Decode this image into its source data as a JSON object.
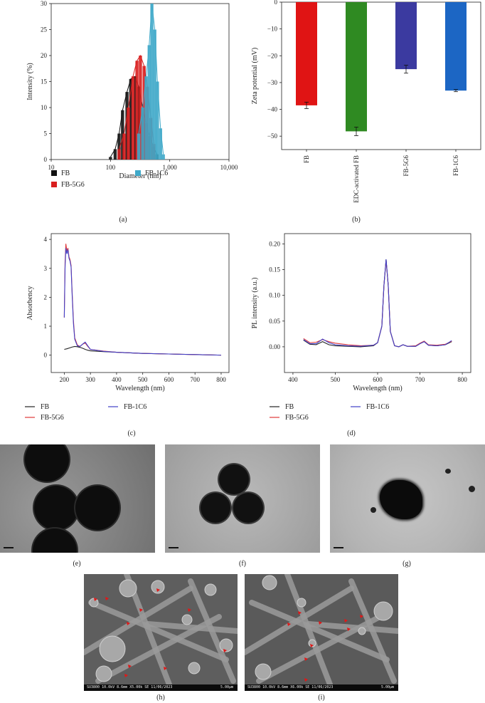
{
  "panels": {
    "a": {
      "label": "(a)"
    },
    "b": {
      "label": "(b)"
    },
    "c": {
      "label": "(c)"
    },
    "d": {
      "label": "(d)"
    },
    "e": {
      "label": "(e)"
    },
    "f": {
      "label": "(f)"
    },
    "g": {
      "label": "(g)"
    },
    "h": {
      "label": "(h)"
    },
    "i": {
      "label": "(i)"
    }
  },
  "colors": {
    "FB": "#111111",
    "FB-5G6": "#d91e1e",
    "FB-1C6": "#3fa9c9",
    "EDC": "#2f8a22",
    "FB5G6bar": "#3b3aa0",
    "FB1C6bar": "#1c66c4",
    "line_FB": "#222222",
    "line_5G6": "#e03a3a",
    "line_1C6": "#4040c8"
  },
  "sem": {
    "h": {
      "left": "SU3800 10.0kV 8.6mm X5.00k SE 11/06/2023",
      "right": "5.00μm"
    },
    "i": {
      "left": "SU3800 10.0kV 8.6mm X6.00k SE 11/06/2023",
      "right": "5.00μm"
    }
  },
  "chart_data": [
    {
      "panel": "a",
      "type": "bar",
      "xscale": "log",
      "xlabel": "Diameter (nm)",
      "ylabel": "Intensity (%)",
      "xlim": [
        10,
        10000
      ],
      "ylim": [
        0,
        30
      ],
      "xticks": [
        "10",
        "100",
        "1,000",
        "10,000"
      ],
      "yticks": [
        "0",
        "5",
        "10",
        "15",
        "20",
        "25",
        "30"
      ],
      "series": [
        {
          "name": "FB",
          "x": [
            100,
            120,
            140,
            160,
            190,
            220,
            260,
            300,
            350,
            400,
            460,
            530,
            610
          ],
          "values": [
            0.5,
            2,
            5,
            9.5,
            13,
            15.5,
            16,
            14,
            10,
            7,
            4.5,
            2.5,
            1
          ]
        },
        {
          "name": "FB-5G6",
          "x": [
            140,
            170,
            200,
            240,
            280,
            320,
            370,
            420,
            480,
            540
          ],
          "values": [
            2,
            5,
            10,
            16,
            19,
            20,
            18,
            14,
            8,
            3
          ]
        },
        {
          "name": "FB-1C6",
          "x": [
            300,
            350,
            400,
            450,
            500,
            560,
            620,
            700,
            780
          ],
          "values": [
            5,
            10,
            16,
            22,
            30,
            25,
            15,
            6,
            1
          ]
        }
      ],
      "legend": [
        "FB",
        "FB-5G6",
        "FB-1C6"
      ]
    },
    {
      "panel": "b",
      "type": "bar",
      "ylabel": "Zeta potential (mV)",
      "ylim": [
        -55,
        0
      ],
      "yticks": [
        "0",
        "-10",
        "-20",
        "-30",
        "-40",
        "-50"
      ],
      "categories": [
        "FB",
        "EDC-activated FB",
        "FB-5G6",
        "FB-1C6"
      ],
      "values": [
        -38.5,
        -48.2,
        -25.0,
        -33.0
      ],
      "errors": [
        1.2,
        1.6,
        1.5,
        0.4
      ]
    },
    {
      "panel": "c",
      "type": "line",
      "xlabel": "Wavelength (nm)",
      "ylabel": "Absorbency",
      "xlim": [
        150,
        830
      ],
      "ylim": [
        -0.6,
        4.2
      ],
      "xticks": [
        "200",
        "300",
        "400",
        "500",
        "600",
        "700",
        "800"
      ],
      "yticks": [
        "0",
        "1",
        "2",
        "3",
        "4"
      ],
      "series": [
        {
          "name": "FB",
          "x": [
            200,
            210,
            220,
            230,
            240,
            250,
            260,
            270,
            280,
            290,
            300,
            350,
            400,
            500,
            600,
            700,
            800
          ],
          "values": [
            0.2,
            0.22,
            0.25,
            0.28,
            0.3,
            0.29,
            0.27,
            0.24,
            0.2,
            0.17,
            0.15,
            0.12,
            0.1,
            0.06,
            0.04,
            0.02,
            0.0
          ]
        },
        {
          "name": "FB-5G6",
          "x": [
            200,
            203,
            206,
            210,
            214,
            218,
            222,
            226,
            230,
            235,
            240,
            250,
            260,
            270,
            280,
            290,
            300,
            350,
            400,
            500,
            600,
            700,
            800
          ],
          "values": [
            1.3,
            3.2,
            3.85,
            3.6,
            3.7,
            3.4,
            3.3,
            3.1,
            2.2,
            1.2,
            0.6,
            0.35,
            0.3,
            0.38,
            0.42,
            0.3,
            0.2,
            0.14,
            0.1,
            0.06,
            0.04,
            0.02,
            0.0
          ]
        },
        {
          "name": "FB-1C6",
          "x": [
            200,
            203,
            206,
            210,
            214,
            218,
            222,
            226,
            230,
            235,
            240,
            250,
            260,
            270,
            280,
            290,
            300,
            350,
            400,
            500,
            600,
            700,
            800
          ],
          "values": [
            1.3,
            3.0,
            3.7,
            3.5,
            3.65,
            3.35,
            3.25,
            3.05,
            2.1,
            1.1,
            0.55,
            0.32,
            0.3,
            0.38,
            0.45,
            0.32,
            0.2,
            0.13,
            0.1,
            0.06,
            0.04,
            0.02,
            0.0
          ]
        }
      ],
      "legend": [
        "FB",
        "FB-5G6",
        "FB-1C6"
      ]
    },
    {
      "panel": "d",
      "type": "line",
      "xlabel": "Wavelength (nm)",
      "ylabel": "PL intensity (a.u.)",
      "xlim": [
        380,
        820
      ],
      "ylim": [
        -0.05,
        0.22
      ],
      "xticks": [
        "400",
        "500",
        "600",
        "700",
        "800"
      ],
      "yticks": [
        "0.00",
        "0.05",
        "0.10",
        "0.15",
        "0.20"
      ],
      "series": [
        {
          "name": "FB",
          "x": [
            425,
            440,
            455,
            470,
            485,
            500,
            530,
            560,
            590,
            600,
            610,
            615,
            620,
            625,
            630,
            640,
            650,
            660,
            670,
            690,
            700,
            710,
            720,
            740,
            760,
            775
          ],
          "values": [
            0.013,
            0.005,
            0.004,
            0.01,
            0.004,
            0.002,
            0.001,
            0.0,
            0.002,
            0.008,
            0.04,
            0.12,
            0.17,
            0.12,
            0.03,
            0.002,
            0.0,
            0.004,
            0.001,
            0.001,
            0.006,
            0.01,
            0.003,
            0.002,
            0.004,
            0.01
          ]
        },
        {
          "name": "FB-5G6",
          "x": [
            425,
            440,
            455,
            470,
            485,
            500,
            530,
            560,
            590,
            600,
            610,
            615,
            620,
            625,
            630,
            640,
            650,
            660,
            670,
            690,
            700,
            710,
            720,
            740,
            760,
            775
          ],
          "values": [
            0.016,
            0.008,
            0.009,
            0.014,
            0.01,
            0.007,
            0.004,
            0.002,
            0.003,
            0.008,
            0.04,
            0.12,
            0.168,
            0.12,
            0.03,
            0.002,
            0.0,
            0.004,
            0.001,
            0.002,
            0.007,
            0.011,
            0.004,
            0.003,
            0.005,
            0.011
          ]
        },
        {
          "name": "FB-1C6",
          "x": [
            425,
            440,
            455,
            470,
            485,
            500,
            530,
            560,
            590,
            600,
            610,
            615,
            620,
            625,
            630,
            640,
            650,
            660,
            670,
            690,
            700,
            710,
            720,
            740,
            760,
            775
          ],
          "values": [
            0.014,
            0.006,
            0.006,
            0.015,
            0.008,
            0.004,
            0.002,
            0.001,
            0.003,
            0.008,
            0.04,
            0.12,
            0.17,
            0.12,
            0.03,
            0.002,
            0.0,
            0.004,
            0.001,
            0.001,
            0.006,
            0.01,
            0.003,
            0.002,
            0.004,
            0.012
          ]
        }
      ],
      "legend": [
        "FB",
        "FB-5G6",
        "FB-1C6"
      ]
    }
  ]
}
